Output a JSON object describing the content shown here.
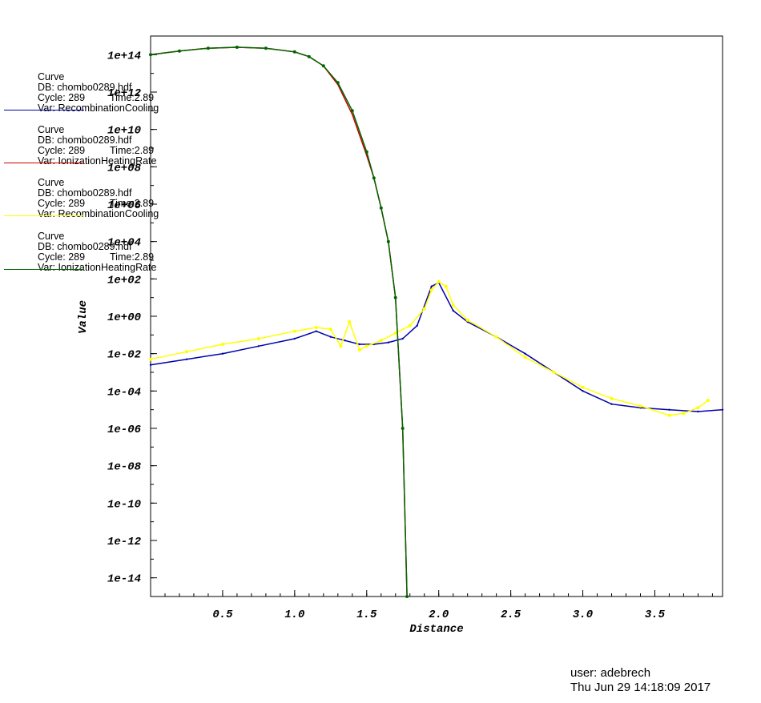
{
  "chart_data": {
    "type": "line",
    "xlabel": "Distance",
    "ylabel": "Value",
    "xlim": [
      0.0,
      3.97
    ],
    "ylim_log10": [
      -15,
      15
    ],
    "y_scale": "log",
    "x_ticks": [
      0.5,
      1.0,
      1.5,
      2.0,
      2.5,
      3.0,
      3.5
    ],
    "x_tick_labels": [
      "0.5",
      "1.0",
      "1.5",
      "2.0",
      "2.5",
      "3.0",
      "3.5"
    ],
    "y_ticks_log10": [
      14,
      12,
      10,
      8,
      6,
      4,
      2,
      0,
      -2,
      -4,
      -6,
      -8,
      -10,
      -12,
      -14
    ],
    "y_tick_labels": [
      "1e+14",
      "1e+12",
      "1e+10",
      "1e+08",
      "1e+06",
      "1e+04",
      "1e+02",
      "1e+00",
      "1e-02",
      "1e-04",
      "1e-06",
      "1e-08",
      "1e-10",
      "1e-12",
      "1e-14"
    ],
    "legend_placement": "left",
    "series": [
      {
        "name": "RecombinationCooling",
        "color": "#0000aa",
        "marker": "small-dot",
        "x": [
          0.0,
          0.25,
          0.5,
          0.75,
          1.0,
          1.15,
          1.25,
          1.35,
          1.45,
          1.55,
          1.65,
          1.75,
          1.85,
          1.95,
          2.0,
          2.1,
          2.2,
          2.4,
          2.6,
          2.8,
          3.0,
          3.2,
          3.4,
          3.6,
          3.8,
          3.97
        ],
        "y_log10": [
          -2.6,
          -2.3,
          -2.0,
          -1.6,
          -1.2,
          -0.8,
          -1.1,
          -1.3,
          -1.5,
          -1.5,
          -1.4,
          -1.2,
          -0.5,
          1.6,
          1.8,
          0.3,
          -0.3,
          -1.1,
          -2.0,
          -3.0,
          -4.0,
          -4.7,
          -4.9,
          -5.0,
          -5.1,
          -5.0
        ]
      },
      {
        "name": "IonizationHeatingRate",
        "color": "#cc0000",
        "marker": "none",
        "x": [
          0.0,
          0.2,
          0.4,
          0.6,
          0.8,
          1.0,
          1.1,
          1.2,
          1.3,
          1.4,
          1.5,
          1.55,
          1.6,
          1.65,
          1.7,
          1.75,
          1.78
        ],
        "y_log10": [
          14.0,
          14.2,
          14.35,
          14.4,
          14.35,
          14.15,
          13.9,
          13.4,
          12.4,
          10.8,
          8.6,
          7.4,
          5.8,
          4.0,
          1.0,
          -6.0,
          -15.0
        ]
      },
      {
        "name": "RecombinationCooling",
        "color": "#ffff00",
        "marker": "dot",
        "x": [
          0.0,
          0.25,
          0.5,
          0.75,
          1.0,
          1.15,
          1.25,
          1.32,
          1.38,
          1.45,
          1.5,
          1.6,
          1.7,
          1.8,
          1.9,
          1.95,
          2.0,
          2.05,
          2.1,
          2.2,
          2.4,
          2.6,
          2.8,
          3.0,
          3.2,
          3.4,
          3.6,
          3.7,
          3.8,
          3.87
        ],
        "y_log10": [
          -2.3,
          -1.9,
          -1.5,
          -1.2,
          -0.8,
          -0.6,
          -0.7,
          -1.6,
          -0.3,
          -1.8,
          -1.6,
          -1.3,
          -0.9,
          -0.5,
          0.4,
          1.4,
          1.85,
          1.6,
          0.6,
          -0.2,
          -1.1,
          -2.2,
          -3.0,
          -3.8,
          -4.4,
          -4.8,
          -5.3,
          -5.2,
          -4.9,
          -4.5
        ]
      },
      {
        "name": "IonizationHeatingRate",
        "color": "#006600",
        "marker": "dot",
        "x": [
          0.0,
          0.2,
          0.4,
          0.6,
          0.8,
          1.0,
          1.1,
          1.2,
          1.3,
          1.4,
          1.5,
          1.55,
          1.6,
          1.65,
          1.7,
          1.75,
          1.78
        ],
        "y_log10": [
          14.0,
          14.2,
          14.35,
          14.4,
          14.35,
          14.15,
          13.9,
          13.4,
          12.5,
          11.0,
          8.8,
          7.4,
          5.8,
          4.0,
          1.0,
          -6.0,
          -15.0
        ]
      }
    ]
  },
  "legend": [
    {
      "title": "Curve",
      "db": "DB: chombo0289.hdf",
      "cycle": "Cycle: 289",
      "time": "Time:2.89",
      "var": "Var: RecombinationCooling"
    },
    {
      "title": "Curve",
      "db": "DB: chombo0289.hdf",
      "cycle": "Cycle: 289",
      "time": "Time:2.89",
      "var": "Var: IonizationHeatingRate"
    },
    {
      "title": "Curve",
      "db": "DB: chombo0289.hdf",
      "cycle": "Cycle: 289",
      "time": "Time:2.89",
      "var": "Var: RecombinationCooling"
    },
    {
      "title": "Curve",
      "db": "DB: chombo0289.hdf",
      "cycle": "Cycle: 289",
      "time": "Time:2.89",
      "var": "Var: IonizationHeatingRate"
    }
  ],
  "footer": {
    "user": "user: adebrech",
    "date": "Thu Jun 29 14:18:09 2017"
  }
}
